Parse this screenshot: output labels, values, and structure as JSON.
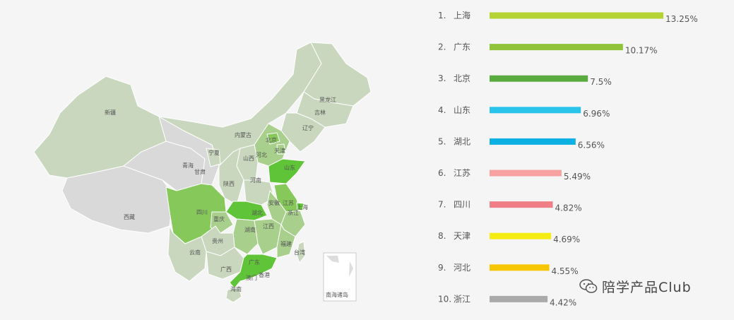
{
  "chart_data": {
    "type": "bar",
    "orientation": "horizontal",
    "categories": [
      "上海",
      "广东",
      "北京",
      "山东",
      "湖北",
      "江苏",
      "四川",
      "天津",
      "河北",
      "浙江"
    ],
    "ranks": [
      "1.",
      "2.",
      "3.",
      "4.",
      "5.",
      "6.",
      "7.",
      "8.",
      "9.",
      "10."
    ],
    "values": [
      13.25,
      10.17,
      7.5,
      6.96,
      6.56,
      5.49,
      4.82,
      4.69,
      4.55,
      4.42
    ],
    "value_labels": [
      "13.25%",
      "10.17%",
      "7.5%",
      "6.96%",
      "6.56%",
      "5.49%",
      "4.82%",
      "4.69%",
      "4.55%",
      "4.42%"
    ],
    "colors": [
      "#b5d334",
      "#8fc43a",
      "#5aab3f",
      "#2ac3ea",
      "#0cb0e2",
      "#f7a1a1",
      "#f07e86",
      "#f5ec14",
      "#f6c700",
      "#aaaaaa"
    ],
    "title": "",
    "xlabel": "",
    "ylabel": ""
  },
  "map": {
    "provinces": [
      "新疆",
      "西藏",
      "青海",
      "甘肃",
      "宁夏",
      "内蒙古",
      "黑龙江",
      "吉林",
      "辽宁",
      "北京",
      "天津",
      "河北",
      "山西",
      "陕西",
      "河南",
      "山东",
      "江苏",
      "安徽",
      "上海",
      "浙江",
      "湖北",
      "四川",
      "重庆",
      "湖南",
      "江西",
      "福建",
      "贵州",
      "云南",
      "广西",
      "广东",
      "澳门",
      "香港",
      "海南",
      "台湾"
    ],
    "inset_label": "南海诸岛",
    "colors": {
      "light": "#c9d7be",
      "mid": "#a9cf8d",
      "strong": "#86c85a",
      "top": "#5fc437",
      "gray": "#d9d9d9"
    }
  },
  "watermark": {
    "text": "陪学产品Club"
  }
}
